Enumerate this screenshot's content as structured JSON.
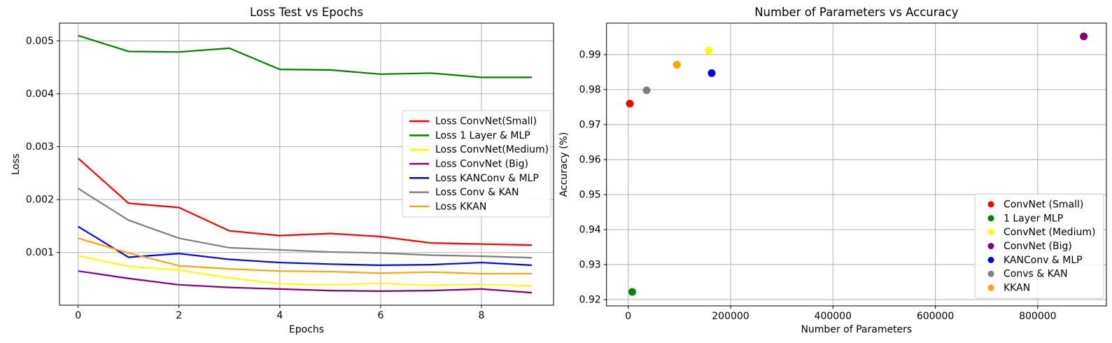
{
  "figure": {
    "background": "#ffffff"
  },
  "chart_data": [
    {
      "type": "line",
      "id": "loss-vs-epochs-chart",
      "title": "Loss Test vs Epochs",
      "xlabel": "Epochs",
      "ylabel": "Loss",
      "x": [
        0,
        1,
        2,
        3,
        4,
        5,
        6,
        7,
        8,
        9
      ],
      "xlim": [
        -0.37,
        9.43
      ],
      "ylim": [
        4e-06,
        0.005335
      ],
      "xticks": [
        0,
        2,
        4,
        6,
        8
      ],
      "xtick_labels": [
        "0",
        "2",
        "4",
        "6",
        "8"
      ],
      "yticks": [
        0.001,
        0.002,
        0.003,
        0.004,
        0.005
      ],
      "ytick_labels": [
        "0.001",
        "0.002",
        "0.003",
        "0.004",
        "0.005"
      ],
      "grid": true,
      "grid_color": "#b0b0b0",
      "legend_loc": "center right",
      "legend_marker": "line",
      "series": [
        {
          "name": "Loss ConvNet(Small)",
          "color": "#ff0000",
          "values": [
            0.00278,
            0.00193,
            0.00185,
            0.00141,
            0.00132,
            0.00136,
            0.0013,
            0.00118,
            0.00116,
            0.00114
          ]
        },
        {
          "name": "Loss 1 Layer & MLP",
          "color": "#008000",
          "values": [
            0.0051,
            0.0048,
            0.00479,
            0.00486,
            0.00446,
            0.00445,
            0.00437,
            0.00439,
            0.00431,
            0.00431
          ]
        },
        {
          "name": "Loss ConvNet(Medium)",
          "color": "#ffff00",
          "values": [
            0.00094,
            0.00074,
            0.00067,
            0.00052,
            0.00041,
            0.00039,
            0.00042,
            0.00038,
            0.0004,
            0.00037
          ]
        },
        {
          "name": "Loss ConvNet (Big)",
          "color": "#800080",
          "values": [
            0.00065,
            0.00051,
            0.00039,
            0.00034,
            0.00031,
            0.00028,
            0.00027,
            0.00028,
            0.00031,
            0.00024
          ]
        },
        {
          "name": "Loss KANConv & MLP",
          "color": "#0000ff",
          "values": [
            0.00149,
            0.00091,
            0.00098,
            0.00087,
            0.00081,
            0.00078,
            0.00076,
            0.00077,
            0.00081,
            0.00076
          ]
        },
        {
          "name": "Loss Conv & KAN",
          "color": "#808080",
          "values": [
            0.00221,
            0.00161,
            0.00127,
            0.00109,
            0.00105,
            0.00101,
            0.00099,
            0.00095,
            0.00093,
            0.0009
          ]
        },
        {
          "name": "Loss KKAN",
          "color": "#ffa500",
          "values": [
            0.00127,
            0.00099,
            0.00075,
            0.00069,
            0.00065,
            0.00064,
            0.00061,
            0.00063,
            0.0006,
            0.0006
          ]
        }
      ]
    },
    {
      "type": "scatter",
      "id": "params-vs-accuracy-chart",
      "title": "Number of Parameters vs Accuracy",
      "xlabel": "Number of Parameters",
      "ylabel": "Accuracy (%)",
      "xlim": [
        -42400,
        934200
      ],
      "ylim": [
        0.9182,
        0.999
      ],
      "xticks": [
        0,
        200000,
        400000,
        600000,
        800000
      ],
      "xtick_labels": [
        "0",
        "200000",
        "400000",
        "600000",
        "800000"
      ],
      "yticks": [
        0.92,
        0.93,
        0.94,
        0.95,
        0.96,
        0.97,
        0.98,
        0.99
      ],
      "ytick_labels": [
        "0.92",
        "0.93",
        "0.94",
        "0.95",
        "0.96",
        "0.97",
        "0.98",
        "0.99"
      ],
      "grid": true,
      "grid_color": "#b0b0b0",
      "legend_loc": "lower right",
      "legend_marker": "dot",
      "series": [
        {
          "name": "ConvNet (Small)",
          "color": "#ff0000",
          "x": 3000,
          "y": 0.976
        },
        {
          "name": "1 Layer MLP",
          "color": "#008000",
          "x": 7850,
          "y": 0.9222
        },
        {
          "name": "ConvNet (Medium)",
          "color": "#ffff00",
          "x": 157000,
          "y": 0.9912
        },
        {
          "name": "ConvNet (Big)",
          "color": "#800080",
          "x": 890000,
          "y": 0.9952
        },
        {
          "name": "KANConv & MLP",
          "color": "#0000ff",
          "x": 163000,
          "y": 0.9847
        },
        {
          "name": "Convs & KAN",
          "color": "#808080",
          "x": 36000,
          "y": 0.9798
        },
        {
          "name": "KKAN",
          "color": "#ffa500",
          "x": 95000,
          "y": 0.9871
        }
      ]
    }
  ]
}
